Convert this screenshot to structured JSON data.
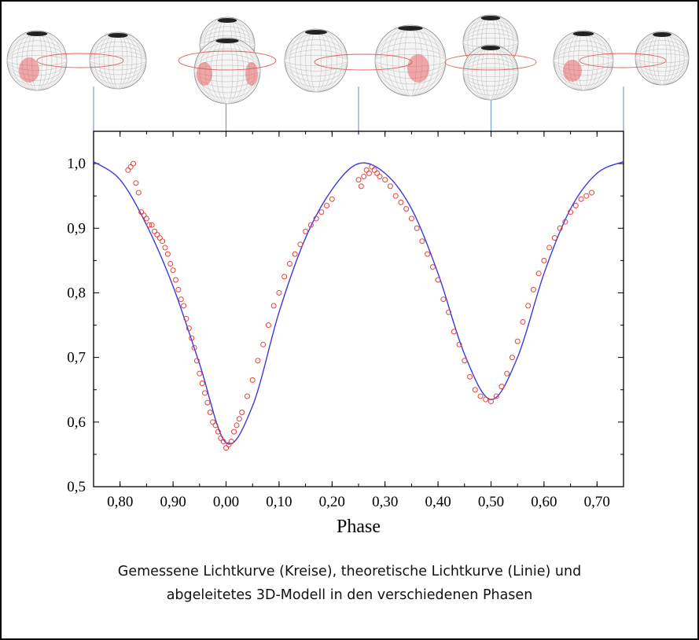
{
  "chart_data": {
    "type": "scatter",
    "xlabel": "Phase",
    "ylabel": "",
    "x_ticks": [
      "0,80",
      "0,90",
      "0,00",
      "0,10",
      "0,20",
      "0,30",
      "0,40",
      "0,50",
      "0,60",
      "0,70"
    ],
    "x_tick_phase_values": [
      0.8,
      0.9,
      1.0,
      1.1,
      1.2,
      1.3,
      1.4,
      1.5,
      1.6,
      1.7
    ],
    "y_ticks": [
      "0,5",
      "0,6",
      "0,7",
      "0,8",
      "0,9",
      "1,0"
    ],
    "y_tick_values": [
      0.5,
      0.6,
      0.7,
      0.8,
      0.9,
      1.0
    ],
    "xlim": [
      0.75,
      1.75
    ],
    "ylim": [
      0.5,
      1.05
    ],
    "grid": false,
    "series": [
      {
        "name": "Gemessene Lichtkurve (Kreise)",
        "kind": "scatter",
        "color": "#e8403a",
        "x": [
          0.815,
          0.82,
          0.825,
          0.83,
          0.835,
          0.84,
          0.845,
          0.85,
          0.855,
          0.86,
          0.865,
          0.87,
          0.875,
          0.88,
          0.885,
          0.89,
          0.895,
          0.9,
          0.905,
          0.91,
          0.915,
          0.92,
          0.925,
          0.93,
          0.935,
          0.94,
          0.945,
          0.95,
          0.955,
          0.96,
          0.965,
          0.97,
          0.975,
          0.98,
          0.985,
          0.99,
          0.995,
          1.0,
          1.005,
          1.01,
          1.015,
          1.02,
          1.025,
          1.03,
          1.04,
          1.05,
          1.06,
          1.07,
          1.08,
          1.09,
          1.1,
          1.11,
          1.12,
          1.13,
          1.14,
          1.15,
          1.16,
          1.17,
          1.18,
          1.19,
          1.2,
          1.25,
          1.255,
          1.26,
          1.265,
          1.27,
          1.275,
          1.28,
          1.285,
          1.29,
          1.3,
          1.31,
          1.32,
          1.33,
          1.34,
          1.35,
          1.36,
          1.37,
          1.38,
          1.39,
          1.4,
          1.41,
          1.42,
          1.43,
          1.44,
          1.45,
          1.46,
          1.47,
          1.48,
          1.49,
          1.5,
          1.51,
          1.52,
          1.53,
          1.54,
          1.55,
          1.56,
          1.57,
          1.58,
          1.59,
          1.6,
          1.61,
          1.62,
          1.63,
          1.64,
          1.65,
          1.66,
          1.67,
          1.68,
          1.69
        ],
        "y": [
          0.99,
          0.995,
          1.0,
          0.97,
          0.955,
          0.925,
          0.92,
          0.915,
          0.905,
          0.905,
          0.895,
          0.89,
          0.885,
          0.88,
          0.87,
          0.86,
          0.845,
          0.835,
          0.82,
          0.805,
          0.79,
          0.78,
          0.76,
          0.745,
          0.73,
          0.715,
          0.695,
          0.675,
          0.66,
          0.645,
          0.63,
          0.615,
          0.6,
          0.595,
          0.585,
          0.575,
          0.57,
          0.56,
          0.565,
          0.57,
          0.585,
          0.595,
          0.605,
          0.615,
          0.64,
          0.665,
          0.695,
          0.72,
          0.75,
          0.78,
          0.8,
          0.825,
          0.845,
          0.86,
          0.875,
          0.895,
          0.905,
          0.915,
          0.925,
          0.935,
          0.945,
          0.975,
          0.965,
          0.98,
          0.99,
          0.985,
          0.995,
          0.99,
          0.985,
          0.98,
          0.975,
          0.965,
          0.95,
          0.94,
          0.93,
          0.915,
          0.9,
          0.88,
          0.86,
          0.84,
          0.82,
          0.79,
          0.77,
          0.74,
          0.72,
          0.695,
          0.67,
          0.65,
          0.64,
          0.635,
          0.632,
          0.64,
          0.655,
          0.675,
          0.7,
          0.725,
          0.755,
          0.78,
          0.805,
          0.83,
          0.85,
          0.87,
          0.885,
          0.9,
          0.91,
          0.925,
          0.935,
          0.945,
          0.95,
          0.955
        ]
      },
      {
        "name": "theoretische Lichtkurve (Linie)",
        "kind": "line",
        "color": "#3a3ae0",
        "x": [
          0.75,
          0.8,
          0.85,
          0.9,
          0.95,
          1.0,
          1.05,
          1.1,
          1.15,
          1.2,
          1.25,
          1.3,
          1.35,
          1.4,
          1.45,
          1.5,
          1.55,
          1.6,
          1.65,
          1.7,
          1.75
        ],
        "y": [
          1.003,
          0.975,
          0.905,
          0.81,
          0.69,
          0.568,
          0.625,
          0.77,
          0.885,
          0.96,
          1.0,
          0.985,
          0.93,
          0.83,
          0.705,
          0.635,
          0.7,
          0.83,
          0.93,
          0.985,
          1.003
        ]
      }
    ],
    "model_marker_phases": [
      0.75,
      1.0,
      1.25,
      1.5,
      1.75
    ]
  },
  "caption": {
    "line1": "Gemessene Lichtkurve (Kreise),  theoretische Lichtkurve (Linie) und",
    "line2": "abgeleitetes 3D-Modell in den verschiedenen Phasen"
  }
}
